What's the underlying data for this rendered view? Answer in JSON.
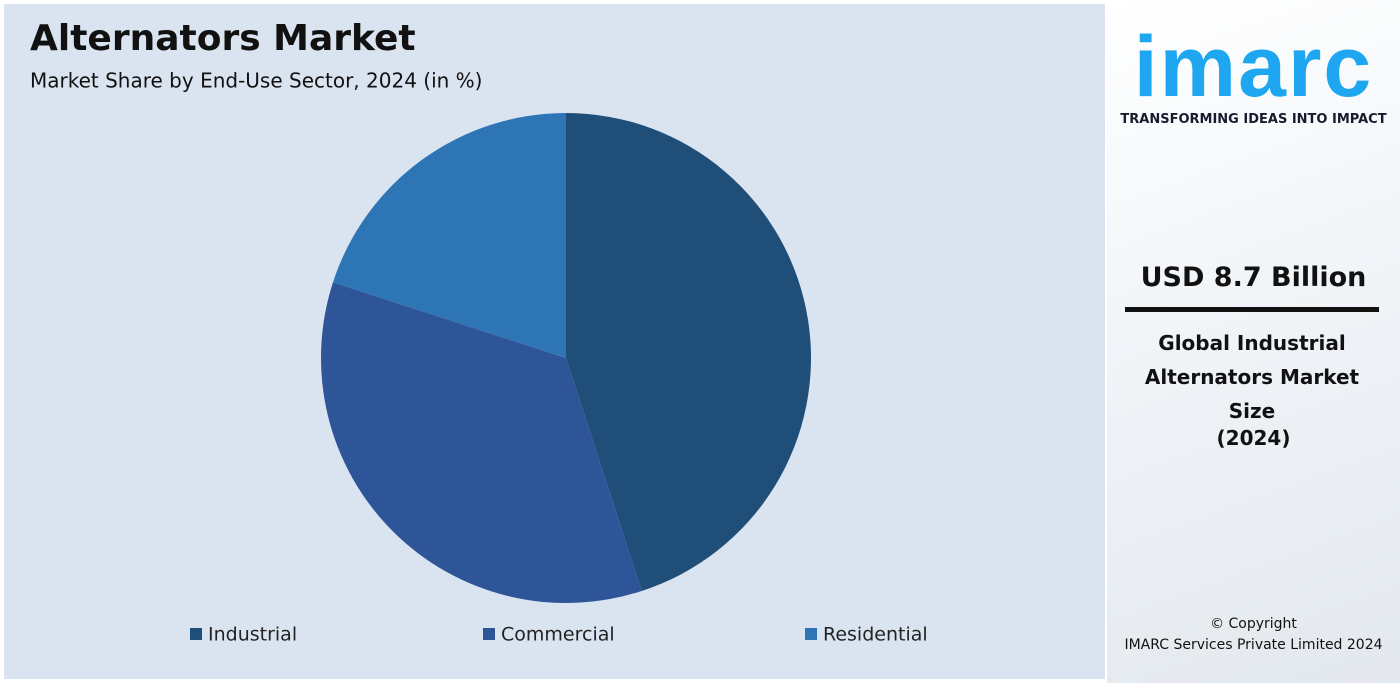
{
  "chart_data": {
    "type": "pie",
    "title": "Alternators Market",
    "subtitle": "Market Share by End-Use Sector, 2024 (in %)",
    "categories": [
      "Industrial",
      "Commercial",
      "Residential"
    ],
    "values": [
      45,
      35,
      20
    ],
    "colors": [
      "#1f4e79",
      "#2e5597",
      "#2e75b6"
    ]
  },
  "sidebar": {
    "brand": "imarc",
    "tagline": "TRANSFORMING IDEAS INTO IMPACT",
    "market_value": "USD 8.7 Billion",
    "description": "Global Industrial Alternators Market Size",
    "year": "(2024)",
    "copyright": "© Copyright",
    "company": "IMARC Services Private Limited 2024"
  }
}
